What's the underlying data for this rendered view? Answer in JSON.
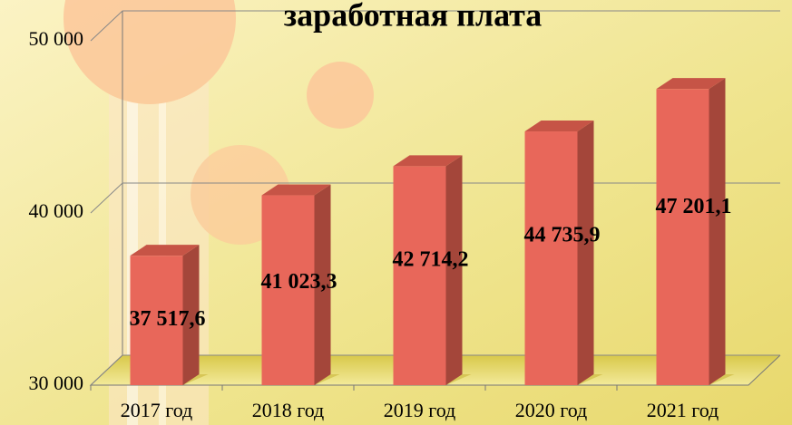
{
  "chart_data": {
    "type": "bar3d",
    "title": "заработная плата",
    "categories": [
      "2017 год",
      "2018 год",
      "2019 год",
      "2020 год",
      "2021 год"
    ],
    "values": [
      37517.6,
      41023.3,
      42714.2,
      44735.9,
      47201.1
    ],
    "value_labels": [
      "37 517,6",
      "41 023,3",
      "42 714,2",
      "44 735,9",
      "47 201,1"
    ],
    "color": "#e8675a",
    "ylim": [
      30000,
      50000
    ],
    "yticks": [
      {
        "value": 30000,
        "label": "30 000"
      },
      {
        "value": 40000,
        "label": "40 000"
      },
      {
        "value": 50000,
        "label": "50 000"
      }
    ],
    "grid": true
  }
}
